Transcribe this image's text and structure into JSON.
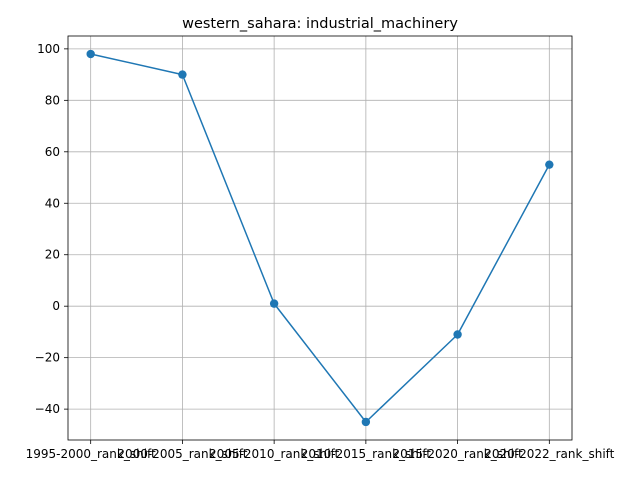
{
  "chart_data": {
    "type": "line",
    "title": "western_sahara: industrial_machinery",
    "xlabel": "",
    "ylabel": "",
    "categories": [
      "1995-2000_rank_shift",
      "2000-2005_rank_shift",
      "2005-2010_rank_shift",
      "2010-2015_rank_shift",
      "2015-2020_rank_shift",
      "2020-2022_rank_shift"
    ],
    "series": [
      {
        "values": [
          98,
          90,
          1,
          -45,
          -11,
          55
        ],
        "color": "#1f77b4",
        "marker": "circle"
      }
    ],
    "ylim": [
      -52,
      105
    ],
    "yticks": [
      -40,
      -20,
      0,
      20,
      40,
      60,
      80,
      100
    ],
    "yticklabels": [
      "−40",
      "−20",
      "0",
      "20",
      "40",
      "60",
      "80",
      "100"
    ],
    "grid": true,
    "legend": "none"
  }
}
